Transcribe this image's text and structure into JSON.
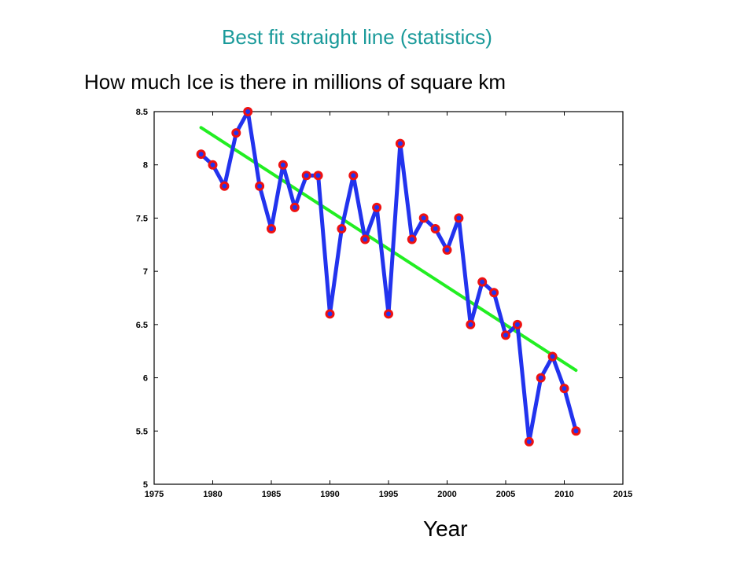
{
  "title": "Best fit straight line (statistics)",
  "subtitle": "How much Ice is there in millions of square km",
  "chart_data": {
    "type": "line",
    "title": "",
    "xlabel": "Year",
    "ylabel": "",
    "xlim": [
      1975,
      2015
    ],
    "ylim": [
      5,
      8.5
    ],
    "xticks": [
      "1975",
      "1980",
      "1985",
      "1990",
      "1995",
      "2000",
      "2005",
      "2010",
      "2015"
    ],
    "yticks": [
      "5",
      "5.5",
      "6",
      "6.5",
      "7",
      "7.5",
      "8",
      "8.5"
    ],
    "grid": false,
    "series": [
      {
        "color": "#2233ee",
        "marker_color": "#ee1111",
        "x": [
          1979,
          1980,
          1981,
          1982,
          1983,
          1984,
          1985,
          1986,
          1987,
          1988,
          1989,
          1990,
          1991,
          1992,
          1993,
          1994,
          1995,
          1996,
          1997,
          1998,
          1999,
          2000,
          2001,
          2002,
          2003,
          2004,
          2005,
          2006,
          2007,
          2008,
          2009,
          2010,
          2011
        ],
        "values": [
          8.1,
          8.0,
          7.8,
          8.3,
          8.5,
          7.8,
          7.4,
          8.0,
          7.6,
          7.9,
          7.9,
          6.6,
          7.4,
          7.9,
          7.3,
          7.6,
          6.6,
          8.2,
          7.3,
          7.5,
          7.4,
          7.2,
          7.5,
          6.5,
          6.9,
          6.8,
          6.4,
          6.5,
          5.4,
          6.0,
          6.2,
          5.9,
          5.5
        ]
      },
      {
        "type": "fit",
        "color": "#22ee22",
        "x": [
          1979,
          2011
        ],
        "values": [
          8.35,
          6.07
        ]
      }
    ]
  }
}
